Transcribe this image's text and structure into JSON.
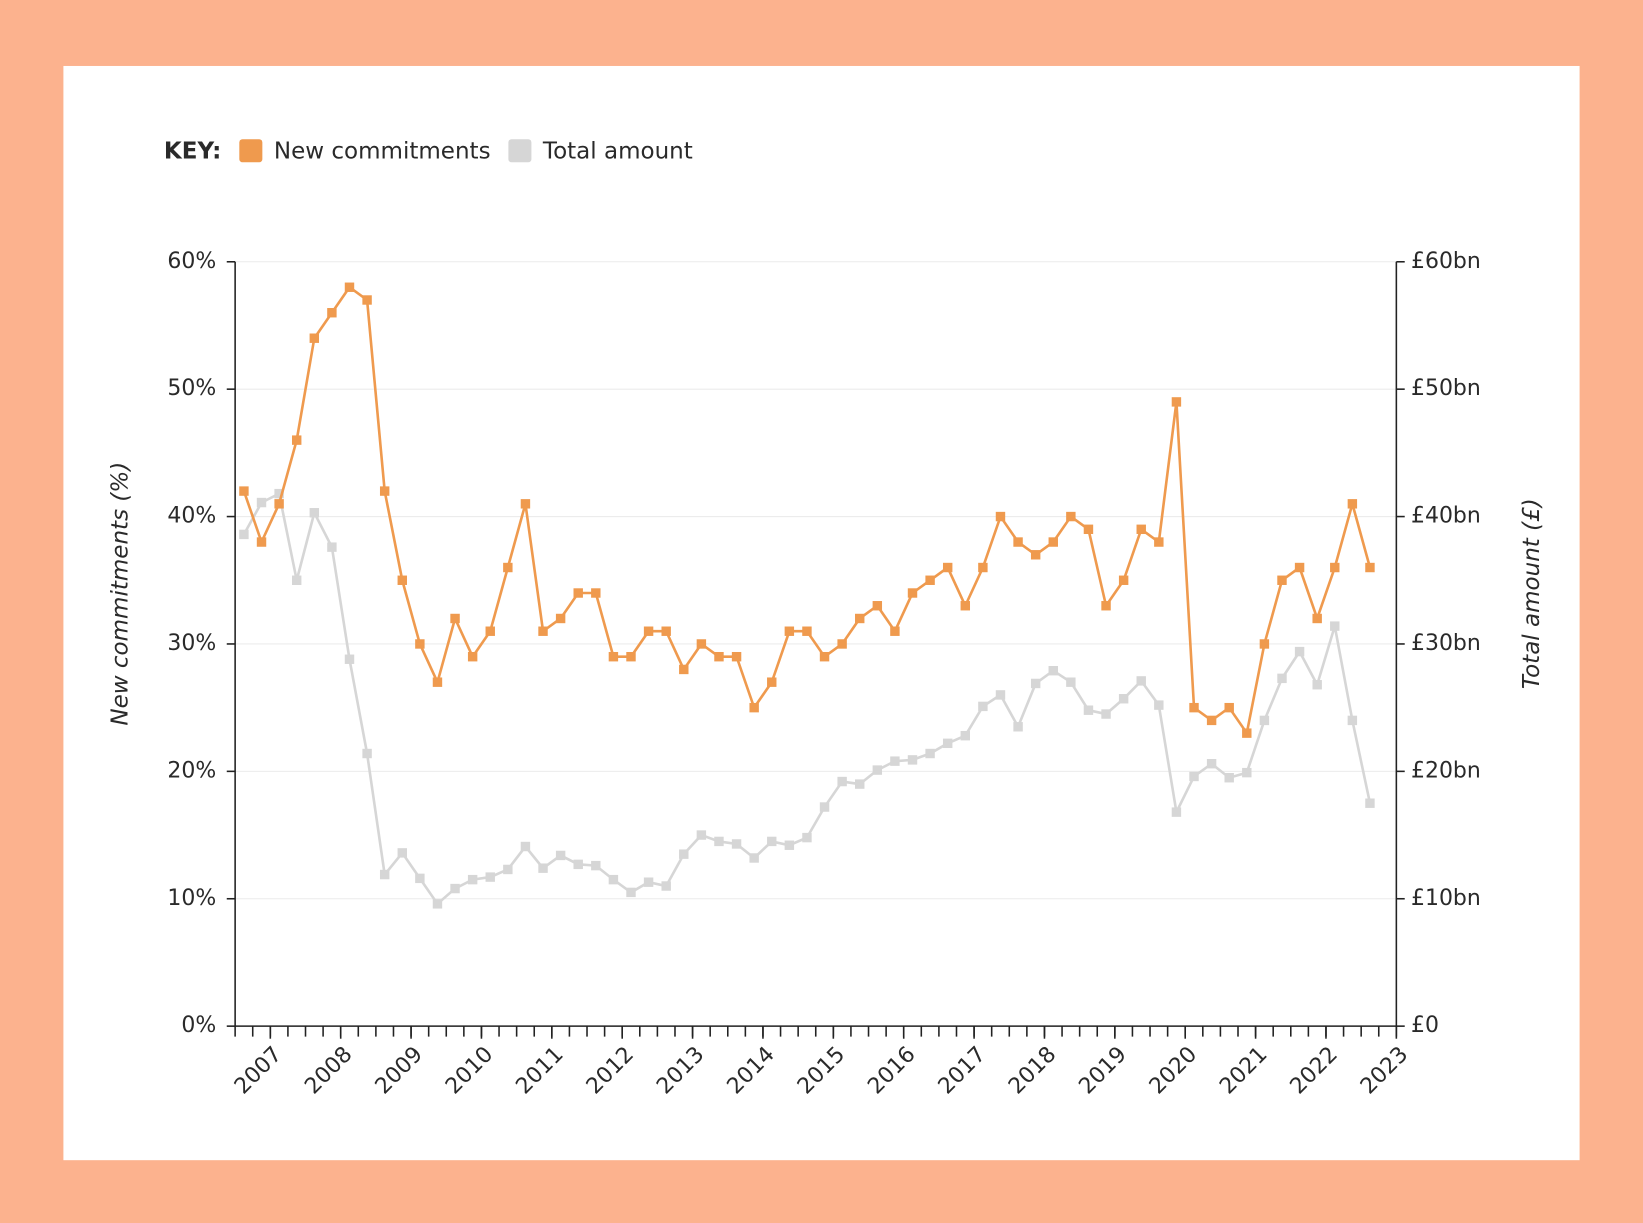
{
  "chart_data": {
    "type": "line",
    "legend_title": "KEY:",
    "ylabel": "New commitments (%)",
    "y2label": "Total amount (£)",
    "x": [
      2006.625,
      2006.875,
      2007.125,
      2007.375,
      2007.625,
      2007.875,
      2008.125,
      2008.375,
      2008.625,
      2008.875,
      2009.125,
      2009.375,
      2009.625,
      2009.875,
      2010.125,
      2010.375,
      2010.625,
      2010.875,
      2011.125,
      2011.375,
      2011.625,
      2011.875,
      2012.125,
      2012.375,
      2012.625,
      2012.875,
      2013.125,
      2013.375,
      2013.625,
      2013.875,
      2014.125,
      2014.375,
      2014.625,
      2014.875,
      2015.125,
      2015.375,
      2015.625,
      2015.875,
      2016.125,
      2016.375,
      2016.625,
      2016.875,
      2017.125,
      2017.375,
      2017.625,
      2017.875,
      2018.125,
      2018.375,
      2018.625,
      2018.875,
      2019.125,
      2019.375,
      2019.625,
      2019.875,
      2020.125,
      2020.375,
      2020.625,
      2020.875,
      2021.125,
      2021.375,
      2021.625,
      2021.875,
      2022.125,
      2022.375,
      2022.625
    ],
    "series": [
      {
        "name": "New commitments",
        "color": "#ef9a4e",
        "axis": "y",
        "values": [
          42,
          38,
          41,
          46,
          54,
          56,
          58,
          57,
          42,
          35,
          30,
          27,
          32,
          29,
          31,
          36,
          41,
          31,
          32,
          34,
          34,
          29,
          29,
          31,
          31,
          28,
          30,
          29,
          29,
          25,
          27,
          31,
          31,
          29,
          30,
          32,
          33,
          31,
          34,
          35,
          36,
          33,
          36,
          40,
          38,
          37,
          38,
          40,
          39,
          33,
          35,
          39,
          38,
          49,
          25,
          24,
          25,
          23,
          30,
          35,
          36,
          32,
          36,
          41,
          36
        ]
      },
      {
        "name": "Total amount",
        "color": "#d6d6d6",
        "axis": "y2",
        "values": [
          38.6,
          41.1,
          41.8,
          35.0,
          40.3,
          37.6,
          28.8,
          21.4,
          11.9,
          13.6,
          11.6,
          9.6,
          10.8,
          11.5,
          11.7,
          12.3,
          14.1,
          12.4,
          13.4,
          12.7,
          12.6,
          11.5,
          10.5,
          11.3,
          11.0,
          13.5,
          15.0,
          14.5,
          14.3,
          13.2,
          14.5,
          14.2,
          14.8,
          17.2,
          19.2,
          19.0,
          20.1,
          20.8,
          20.9,
          21.4,
          22.2,
          22.8,
          25.1,
          26.0,
          23.5,
          26.9,
          27.9,
          27.0,
          24.8,
          24.5,
          25.7,
          27.1,
          25.2,
          16.8,
          19.6,
          20.6,
          19.5,
          19.9,
          24.0,
          27.3,
          29.4,
          26.8,
          31.4,
          24.0,
          17.5
        ]
      }
    ],
    "xlim": [
      2006.5,
      2023
    ],
    "xticks": [
      2007,
      2008,
      2009,
      2010,
      2011,
      2012,
      2013,
      2014,
      2015,
      2016,
      2017,
      2018,
      2019,
      2020,
      2021,
      2022,
      2023
    ],
    "ylim": [
      0,
      60
    ],
    "yticks": [
      {
        "value": 0,
        "label": "0%"
      },
      {
        "value": 10,
        "label": "10%"
      },
      {
        "value": 20,
        "label": "20%"
      },
      {
        "value": 30,
        "label": "30%"
      },
      {
        "value": 40,
        "label": "40%"
      },
      {
        "value": 50,
        "label": "50%"
      },
      {
        "value": 60,
        "label": "60%"
      }
    ],
    "y2lim": [
      0,
      60
    ],
    "y2ticks": [
      {
        "value": 0,
        "label": "£0"
      },
      {
        "value": 10,
        "label": "£10bn"
      },
      {
        "value": 20,
        "label": "£20bn"
      },
      {
        "value": 30,
        "label": "£30bn"
      },
      {
        "value": 40,
        "label": "£40bn"
      },
      {
        "value": 50,
        "label": "£50bn"
      },
      {
        "value": 60,
        "label": "£60bn"
      }
    ],
    "grid": true
  }
}
